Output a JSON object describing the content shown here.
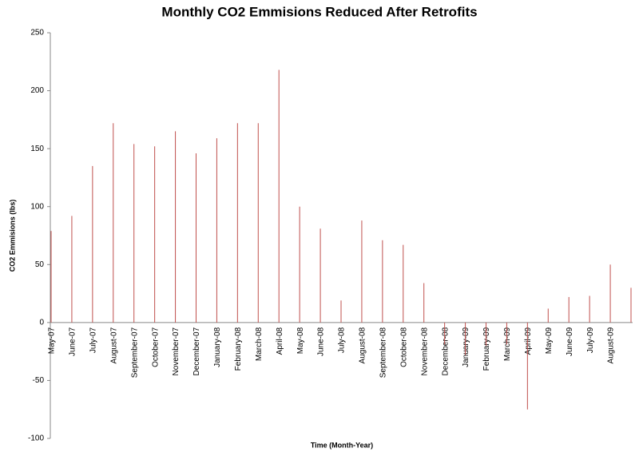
{
  "chart_data": {
    "type": "bar",
    "title": "Monthly CO2 Emmisions Reduced After Retrofits",
    "x_label": "Time (Month-Year)",
    "y_label": "CO2 Emmisions  (lbs)",
    "categories": [
      "May-07",
      "June-07",
      "July-07",
      "August-07",
      "September-07",
      "October-07",
      "November-07",
      "December-07",
      "January-08",
      "February-08",
      "March-08",
      "April-08",
      "May-08",
      "June-08",
      "July-08",
      "August-08",
      "September-08",
      "October-08",
      "November-08",
      "December-08",
      "January-09",
      "February-09",
      "March-09",
      "April-09",
      "May-09",
      "June-09",
      "July-09",
      "August-09",
      null
    ],
    "values": [
      79,
      92,
      135,
      172,
      154,
      152,
      165,
      146,
      159,
      172,
      172,
      218,
      100,
      81,
      19,
      88,
      71,
      67,
      34,
      -19,
      -28,
      -20,
      -19,
      -75,
      12,
      22,
      23,
      50,
      30
    ],
    "color": "#c0504d",
    "ylim": [
      -100,
      250
    ],
    "yticks": [
      -100,
      -50,
      0,
      50,
      100,
      150,
      200,
      250
    ],
    "grid": false
  }
}
